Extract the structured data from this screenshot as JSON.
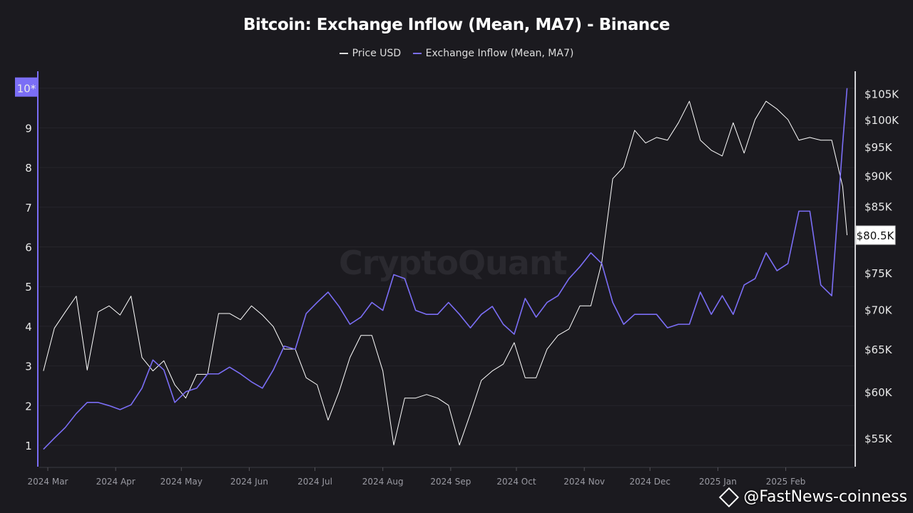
{
  "chart_data": {
    "type": "line",
    "title": "Bitcoin: Exchange Inflow (Mean, MA7) - Binance",
    "legend": {
      "placement": "top-center",
      "entries": [
        "Price USD",
        "Exchange Inflow (Mean, MA7)"
      ]
    },
    "grid": true,
    "colors": {
      "price": "#ffffff",
      "inflow": "#7b6ef6",
      "background": "#1b1a1f"
    },
    "x": [
      "2024-02-28",
      "2024-03-04",
      "2024-03-09",
      "2024-03-14",
      "2024-03-19",
      "2024-03-24",
      "2024-03-29",
      "2024-04-03",
      "2024-04-08",
      "2024-04-13",
      "2024-04-18",
      "2024-04-23",
      "2024-04-28",
      "2024-05-03",
      "2024-05-08",
      "2024-05-13",
      "2024-05-18",
      "2024-05-23",
      "2024-05-28",
      "2024-06-02",
      "2024-06-07",
      "2024-06-12",
      "2024-06-17",
      "2024-06-22",
      "2024-06-27",
      "2024-07-02",
      "2024-07-07",
      "2024-07-12",
      "2024-07-17",
      "2024-07-22",
      "2024-07-27",
      "2024-08-01",
      "2024-08-06",
      "2024-08-11",
      "2024-08-16",
      "2024-08-21",
      "2024-08-26",
      "2024-08-31",
      "2024-09-05",
      "2024-09-10",
      "2024-09-15",
      "2024-09-20",
      "2024-09-25",
      "2024-09-30",
      "2024-10-05",
      "2024-10-10",
      "2024-10-15",
      "2024-10-20",
      "2024-10-25",
      "2024-10-30",
      "2024-11-04",
      "2024-11-09",
      "2024-11-14",
      "2024-11-19",
      "2024-11-24",
      "2024-11-29",
      "2024-12-04",
      "2024-12-09",
      "2024-12-14",
      "2024-12-19",
      "2024-12-24",
      "2024-12-29",
      "2025-01-03",
      "2025-01-08",
      "2025-01-13",
      "2025-01-18",
      "2025-01-23",
      "2025-01-28",
      "2025-02-02",
      "2025-02-07",
      "2025-02-12",
      "2025-02-17",
      "2025-02-22",
      "2025-02-27",
      "2025-03-01"
    ],
    "series": [
      {
        "name": "Price USD",
        "axis": "right",
        "values": [
          62400,
          67600,
          69700,
          71800,
          62500,
          69700,
          70500,
          69300,
          71800,
          64000,
          62400,
          63600,
          60800,
          59300,
          62000,
          62000,
          69500,
          69500,
          68700,
          70500,
          69300,
          67800,
          65000,
          65000,
          61600,
          60800,
          56900,
          60000,
          64000,
          66700,
          66700,
          62400,
          54300,
          59300,
          59300,
          59700,
          59300,
          58500,
          54300,
          57600,
          61300,
          62400,
          63200,
          65800,
          61600,
          61600,
          65000,
          66700,
          67500,
          70500,
          70500,
          76500,
          89500,
          91500,
          98000,
          95700,
          96700,
          96200,
          99400,
          103500,
          96200,
          94400,
          93400,
          99400,
          93900,
          100000,
          103500,
          102000,
          100000,
          96200,
          96700,
          96200,
          96200,
          88200,
          80500
        ]
      },
      {
        "name": "Exchange Inflow (Mean, MA7)",
        "axis": "left",
        "values": [
          0.9,
          1.18,
          1.45,
          1.8,
          2.08,
          2.08,
          2.0,
          1.9,
          2.02,
          2.44,
          3.15,
          2.9,
          2.08,
          2.35,
          2.44,
          2.8,
          2.8,
          2.97,
          2.8,
          2.6,
          2.44,
          2.9,
          3.5,
          3.42,
          4.32,
          4.6,
          4.86,
          4.5,
          4.05,
          4.23,
          4.6,
          4.4,
          5.3,
          5.2,
          4.4,
          4.3,
          4.3,
          4.6,
          4.3,
          3.96,
          4.3,
          4.5,
          4.05,
          3.8,
          4.7,
          4.23,
          4.6,
          4.77,
          5.2,
          5.5,
          5.85,
          5.58,
          4.6,
          4.05,
          4.3,
          4.3,
          4.3,
          3.96,
          4.05,
          4.05,
          4.86,
          4.3,
          4.77,
          4.3,
          5.04,
          5.2,
          5.85,
          5.4,
          5.58,
          6.9,
          6.9,
          5.04,
          4.77,
          8.6,
          10.0
        ]
      }
    ],
    "left_axis": {
      "ticks": [
        "1",
        "2",
        "3",
        "4",
        "5",
        "6",
        "7",
        "8",
        "9",
        "10*"
      ],
      "ylim": [
        0.5,
        10.5
      ],
      "highlight": "10*"
    },
    "right_axis": {
      "scale": "log",
      "ticks": [
        "$55K",
        "$60K",
        "$65K",
        "$70K",
        "$75K",
        "$85K",
        "$90K",
        "$95K",
        "$100K",
        "$105K"
      ],
      "tick_values": [
        55000,
        60000,
        65000,
        70000,
        75000,
        85000,
        90000,
        95000,
        100000,
        105000
      ],
      "current_label": "$80.5K"
    },
    "x_ticks": [
      "2024 Mar",
      "2024 Apr",
      "2024 May",
      "2024 Jun",
      "2024 Jul",
      "2024 Aug",
      "2024 Sep",
      "2024 Oct",
      "2024 Nov",
      "2024 Dec",
      "2025 Jan",
      "2025 Feb"
    ],
    "x_tick_dates": [
      "2024-03-01",
      "2024-04-01",
      "2024-05-01",
      "2024-06-01",
      "2024-07-01",
      "2024-08-01",
      "2024-09-01",
      "2024-10-01",
      "2024-11-01",
      "2024-12-01",
      "2025-01-01",
      "2025-02-01"
    ]
  },
  "watermark": "CryptoQuant",
  "credit": "@FastNews-coinness"
}
